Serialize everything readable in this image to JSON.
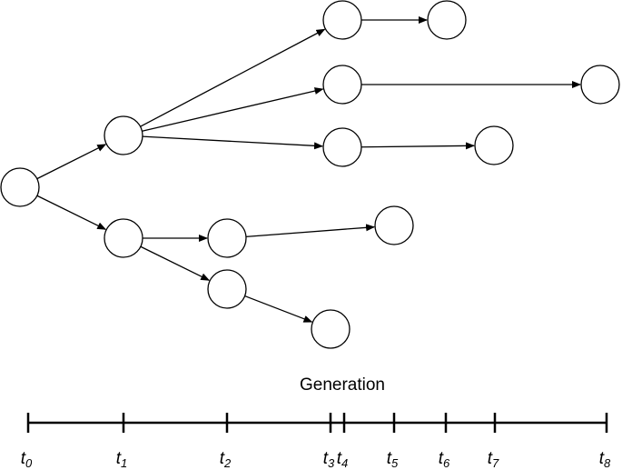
{
  "axis": {
    "title": "Generation",
    "ticks": [
      {
        "var": "t",
        "sub": "0"
      },
      {
        "var": "t",
        "sub": "1"
      },
      {
        "var": "t",
        "sub": "2"
      },
      {
        "var": "t",
        "sub": "3"
      },
      {
        "var": "t",
        "sub": "4"
      },
      {
        "var": "t",
        "sub": "5"
      },
      {
        "var": "t",
        "sub": "6"
      },
      {
        "var": "t",
        "sub": "7"
      },
      {
        "var": "t",
        "sub": "8"
      }
    ]
  }
}
